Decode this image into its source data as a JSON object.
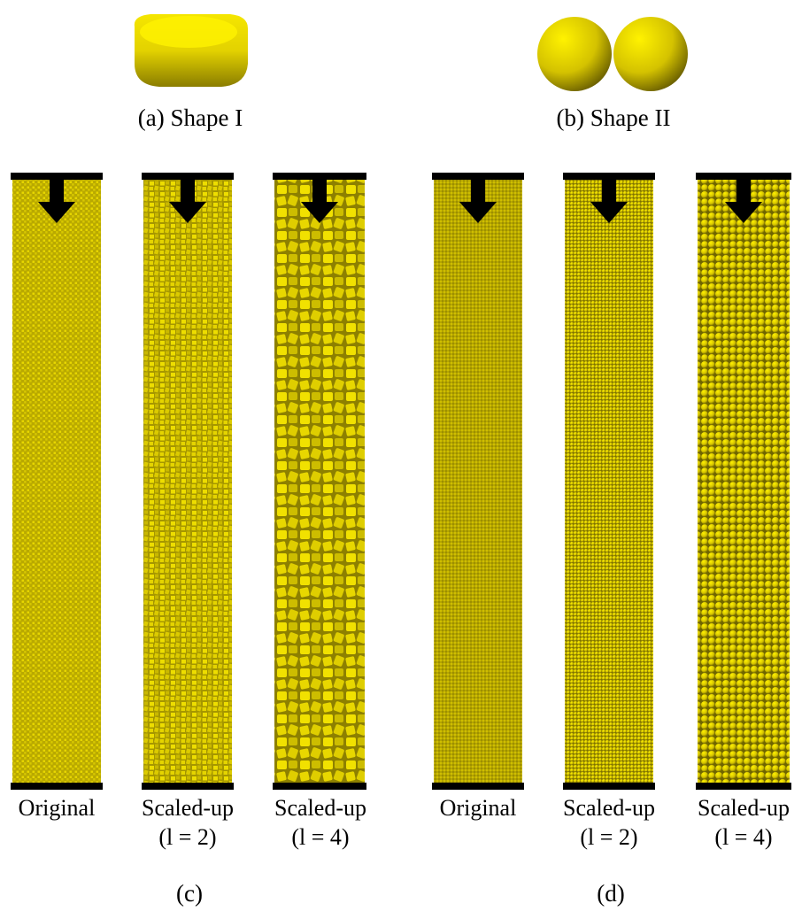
{
  "shapes": [
    {
      "caption": "(a) Shape I"
    },
    {
      "caption": "(b) Shape II"
    }
  ],
  "groups": [
    {
      "caption": "(c)",
      "columns": [
        {
          "label": "Original"
        },
        {
          "label": "Scaled-up",
          "scale": "(l = 2)"
        },
        {
          "label": "Scaled-up",
          "scale": "(l = 4)"
        }
      ]
    },
    {
      "caption": "(d)",
      "columns": [
        {
          "label": "Original"
        },
        {
          "label": "Scaled-up",
          "scale": "(l = 2)"
        },
        {
          "label": "Scaled-up",
          "scale": "(l = 4)"
        }
      ]
    }
  ]
}
